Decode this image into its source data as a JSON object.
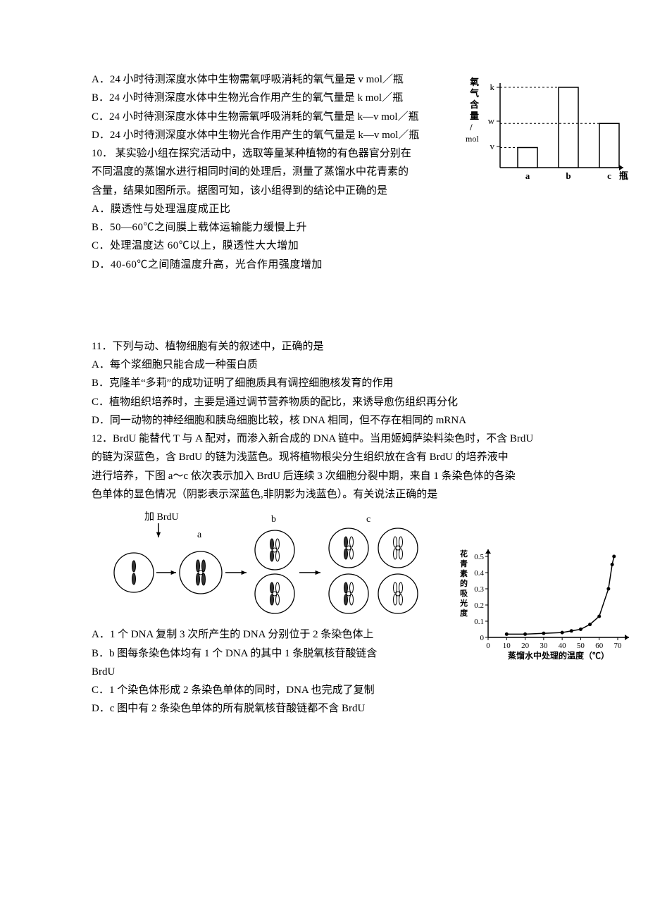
{
  "q9": {
    "opts": {
      "A": "A．24 小时待测深度水体中生物需氧呼吸消耗的氧气量是 v mol／瓶",
      "B": "B．24 小时待测深度水体中生物光合作用产生的氧气量是 k mol／瓶",
      "C": "C．24 小时待测深度水体中生物需氧呼吸消耗的氧气量是 k—v mol／瓶",
      "D": "D．24 小时待测深度水体中生物光合作用产生的氧气量是 k—v mol／瓶"
    }
  },
  "q10": {
    "stem_l1": "10．  某实验小组在探究活动中，选取等量某种植物的有色器官分别在",
    "stem_l2": "不同温度的蒸馏水进行相同时间的处理后，测量了蒸馏水中花青素的",
    "stem_l3": "含量，结果如图所示。据图可知，该小组得到的结论中正确的是",
    "opts": {
      "A": "A．膜透性与处理温度成正比",
      "B": "B．50—60℃之间膜上载体运输能力缓慢上升",
      "C": "C．处理温度达 60℃以上，膜透性大大增加",
      "D": "D．40-60℃之间随温度升高，光合作用强度增加"
    }
  },
  "q11": {
    "stem": "11．下列与动、植物细胞有关的叙述中，正确的是",
    "opts": {
      "A": "A．每个浆细胞只能合成一种蛋白质",
      "B": "B．克隆羊“多莉”的成功证明了细胞质具有调控细胞核发育的作用",
      "C": "C．植物组织培养时，主要是通过调节营养物质的配比，来诱导愈伤组织再分化",
      "D": "D．同一动物的神经细胞和胰岛细胞比较，核 DNA 相同，但不存在相同的 mRNA"
    }
  },
  "q12": {
    "stem_l1": "12．BrdU 能替代 T 与 A 配对，而渗入新合成的 DNA 链中。当用姬姆萨染料染色时，不含 BrdU",
    "stem_l2": "的链为深蓝色，含 BrdU 的链为浅蓝色。现将植物根尖分生组织放在含有 BrdU 的培养液中",
    "stem_l3": "进行培养，下图 a～c 依次表示加入 BrdU 后连续 3 次细胞分裂中期，来自 1 条染色体的各染",
    "stem_l4": "色单体的显色情况（阴影表示深蓝色,非阴影为浅蓝色）。有关说法正确的是",
    "opts": {
      "A": "A．1 个 DNA 复制 3 次所产生的 DNA 分别位于 2 条染色体上",
      "B": "B．b 图每条染色体均有 1 个 DNA 的其中 1 条脱氧核苷酸链含",
      "B2": "BrdU",
      "C": "C．1 个染色体形成 2 条染色单体的同时，DNA 也完成了复制",
      "D": "D．c 图中有 2 条染色单体的所有脱氧核苷酸链都不含 BrdU"
    },
    "diagram": {
      "label_add": "加 BrdU",
      "a": "a",
      "b": "b",
      "c": "c"
    }
  },
  "chart1": {
    "ylabel_chars": [
      "氧",
      "气",
      "含",
      "量",
      "/"
    ],
    "yunit": "mol",
    "yticks": [
      "k",
      "w",
      "v"
    ],
    "xcats": [
      "a",
      "b",
      "c",
      "瓶"
    ],
    "heights": [
      0.25,
      1.0,
      0.55
    ],
    "axis_color": "#000000",
    "bar_fill": "#ffffff",
    "bar_stroke": "#000000",
    "font_size": 13
  },
  "chart2": {
    "ylabel_chars": [
      "花",
      "青",
      "素",
      "的",
      "吸",
      "光",
      "度"
    ],
    "yticks": [
      0,
      0.1,
      0.2,
      0.3,
      0.4,
      0.5
    ],
    "xticks": [
      0,
      10,
      20,
      30,
      40,
      50,
      60,
      70
    ],
    "xlabel": "蒸馏水中处理的温度（℃）",
    "points": [
      [
        10,
        0.02
      ],
      [
        20,
        0.02
      ],
      [
        30,
        0.025
      ],
      [
        40,
        0.03
      ],
      [
        45,
        0.04
      ],
      [
        50,
        0.05
      ],
      [
        55,
        0.08
      ],
      [
        60,
        0.13
      ],
      [
        65,
        0.3
      ],
      [
        67,
        0.45
      ],
      [
        68,
        0.5
      ]
    ],
    "axis_color": "#000000",
    "line_color": "#000000",
    "font_size": 12
  }
}
